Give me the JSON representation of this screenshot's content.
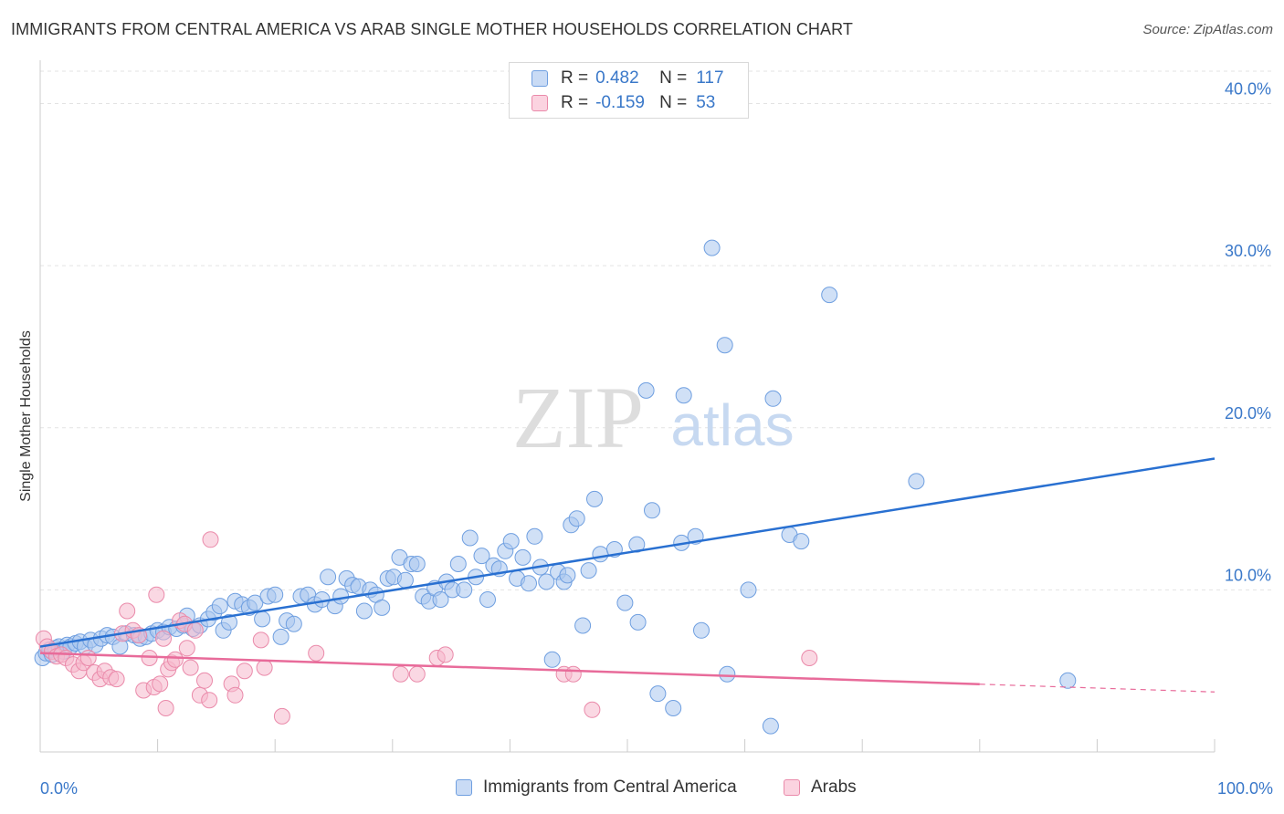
{
  "title": "IMMIGRANTS FROM CENTRAL AMERICA VS ARAB SINGLE MOTHER HOUSEHOLDS CORRELATION CHART",
  "source": "Source: ZipAtlas.com",
  "watermark": {
    "zip": "ZIP",
    "atlas": "atlas"
  },
  "colors": {
    "blue_fill": "#a9c6ee",
    "blue_stroke": "#6f9fe0",
    "blue_line": "#2970d1",
    "pink_fill": "#f5b8cc",
    "pink_stroke": "#ea8aaa",
    "pink_line": "#e86b9a",
    "tick_label": "#3a78c9",
    "grid": "#e3e3e3"
  },
  "legend": {
    "rows": [
      {
        "r_label": "R =",
        "r_value": "0.482",
        "n_label": "N =",
        "n_value": "117"
      },
      {
        "r_label": "R =",
        "r_value": "-0.159",
        "n_label": "N =",
        "n_value": "53"
      }
    ],
    "bottom": [
      "Immigrants from Central America",
      "Arabs"
    ]
  },
  "chart_data": {
    "type": "scatter",
    "title": "IMMIGRANTS FROM CENTRAL AMERICA VS ARAB SINGLE MOTHER HOUSEHOLDS CORRELATION CHART",
    "xlabel": "",
    "ylabel": "Single Mother Households",
    "xlim": [
      0,
      100
    ],
    "ylim": [
      0,
      42
    ],
    "x_tick_labels": [
      "0.0%",
      "100.0%"
    ],
    "y_ticks": [
      10,
      20,
      30,
      40
    ],
    "y_tick_labels": [
      "10.0%",
      "20.0%",
      "30.0%",
      "40.0%"
    ],
    "grid": true,
    "legend_position": "top-center",
    "series": [
      {
        "name": "Immigrants from Central America",
        "color": "#6f9fe0",
        "points": [
          [
            0.2,
            5.8
          ],
          [
            0.5,
            6.1
          ],
          [
            0.8,
            6.3
          ],
          [
            1.0,
            6.0
          ],
          [
            1.3,
            6.4
          ],
          [
            1.6,
            6.5
          ],
          [
            2.0,
            6.2
          ],
          [
            2.3,
            6.6
          ],
          [
            2.6,
            6.5
          ],
          [
            3.0,
            6.7
          ],
          [
            3.4,
            6.8
          ],
          [
            3.8,
            6.5
          ],
          [
            4.3,
            6.9
          ],
          [
            4.7,
            6.6
          ],
          [
            5.2,
            7.0
          ],
          [
            5.7,
            7.2
          ],
          [
            6.2,
            7.1
          ],
          [
            6.8,
            6.5
          ],
          [
            7.3,
            7.3
          ],
          [
            8.0,
            7.2
          ],
          [
            8.5,
            7.0
          ],
          [
            9.0,
            7.1
          ],
          [
            9.5,
            7.3
          ],
          [
            10.0,
            7.5
          ],
          [
            10.5,
            7.4
          ],
          [
            11.0,
            7.7
          ],
          [
            11.6,
            7.6
          ],
          [
            12.2,
            7.8
          ],
          [
            12.5,
            8.4
          ],
          [
            13.0,
            7.6
          ],
          [
            13.6,
            7.8
          ],
          [
            14.3,
            8.2
          ],
          [
            14.8,
            8.6
          ],
          [
            15.3,
            9.0
          ],
          [
            15.6,
            7.5
          ],
          [
            16.1,
            8.0
          ],
          [
            16.6,
            9.3
          ],
          [
            17.2,
            9.1
          ],
          [
            17.8,
            8.9
          ],
          [
            18.3,
            9.2
          ],
          [
            18.9,
            8.2
          ],
          [
            19.4,
            9.6
          ],
          [
            20.0,
            9.7
          ],
          [
            20.5,
            7.1
          ],
          [
            21.0,
            8.1
          ],
          [
            21.6,
            7.9
          ],
          [
            22.2,
            9.6
          ],
          [
            22.8,
            9.7
          ],
          [
            23.4,
            9.1
          ],
          [
            24.0,
            9.4
          ],
          [
            24.5,
            10.8
          ],
          [
            25.1,
            9.0
          ],
          [
            25.6,
            9.6
          ],
          [
            26.1,
            10.7
          ],
          [
            26.6,
            10.3
          ],
          [
            27.1,
            10.2
          ],
          [
            27.6,
            8.7
          ],
          [
            28.1,
            10.0
          ],
          [
            28.6,
            9.7
          ],
          [
            29.1,
            8.9
          ],
          [
            29.6,
            10.7
          ],
          [
            30.1,
            10.8
          ],
          [
            30.6,
            12.0
          ],
          [
            31.1,
            10.6
          ],
          [
            31.6,
            11.6
          ],
          [
            32.1,
            11.6
          ],
          [
            32.6,
            9.6
          ],
          [
            33.1,
            9.3
          ],
          [
            33.6,
            10.1
          ],
          [
            34.1,
            9.4
          ],
          [
            34.6,
            10.5
          ],
          [
            35.1,
            10.0
          ],
          [
            35.6,
            11.6
          ],
          [
            36.1,
            10.0
          ],
          [
            36.6,
            13.2
          ],
          [
            37.1,
            10.8
          ],
          [
            37.6,
            12.1
          ],
          [
            38.1,
            9.4
          ],
          [
            38.6,
            11.5
          ],
          [
            39.1,
            11.3
          ],
          [
            39.6,
            12.4
          ],
          [
            40.1,
            13.0
          ],
          [
            40.6,
            10.7
          ],
          [
            41.1,
            12.0
          ],
          [
            41.6,
            10.4
          ],
          [
            42.1,
            13.3
          ],
          [
            42.6,
            11.4
          ],
          [
            43.1,
            10.5
          ],
          [
            43.6,
            5.7
          ],
          [
            44.1,
            11.1
          ],
          [
            44.6,
            10.5
          ],
          [
            44.9,
            10.9
          ],
          [
            45.2,
            14.0
          ],
          [
            45.7,
            14.4
          ],
          [
            46.2,
            7.8
          ],
          [
            46.7,
            11.2
          ],
          [
            47.2,
            15.6
          ],
          [
            47.7,
            12.2
          ],
          [
            48.9,
            12.5
          ],
          [
            49.8,
            9.2
          ],
          [
            50.8,
            12.8
          ],
          [
            50.9,
            8.0
          ],
          [
            51.6,
            22.3
          ],
          [
            52.1,
            14.9
          ],
          [
            52.6,
            3.6
          ],
          [
            53.9,
            2.7
          ],
          [
            54.8,
            22.0
          ],
          [
            54.6,
            12.9
          ],
          [
            55.8,
            13.3
          ],
          [
            56.3,
            7.5
          ],
          [
            57.2,
            31.1
          ],
          [
            58.3,
            25.1
          ],
          [
            58.5,
            4.8
          ],
          [
            60.3,
            10.0
          ],
          [
            62.2,
            1.6
          ],
          [
            62.4,
            21.8
          ],
          [
            63.8,
            13.4
          ],
          [
            64.8,
            13.0
          ],
          [
            67.2,
            28.2
          ],
          [
            74.6,
            16.7
          ],
          [
            87.5,
            4.4
          ]
        ]
      },
      {
        "name": "Arabs",
        "color": "#ea8aaa",
        "points": [
          [
            0.3,
            7.0
          ],
          [
            0.6,
            6.5
          ],
          [
            1.0,
            6.2
          ],
          [
            1.4,
            5.9
          ],
          [
            1.8,
            6.0
          ],
          [
            2.2,
            5.8
          ],
          [
            2.8,
            5.4
          ],
          [
            3.3,
            5.0
          ],
          [
            3.7,
            5.5
          ],
          [
            4.1,
            5.8
          ],
          [
            4.6,
            4.9
          ],
          [
            5.1,
            4.5
          ],
          [
            5.5,
            5.0
          ],
          [
            6.0,
            4.6
          ],
          [
            6.5,
            4.5
          ],
          [
            7.0,
            7.3
          ],
          [
            7.4,
            8.7
          ],
          [
            7.9,
            7.5
          ],
          [
            8.4,
            7.2
          ],
          [
            8.8,
            3.8
          ],
          [
            9.3,
            5.8
          ],
          [
            9.7,
            4.0
          ],
          [
            9.9,
            9.7
          ],
          [
            10.2,
            4.2
          ],
          [
            10.5,
            7.0
          ],
          [
            10.7,
            2.7
          ],
          [
            10.9,
            5.1
          ],
          [
            11.2,
            5.5
          ],
          [
            11.5,
            5.7
          ],
          [
            11.9,
            8.1
          ],
          [
            12.3,
            7.9
          ],
          [
            12.5,
            6.4
          ],
          [
            12.8,
            5.2
          ],
          [
            13.2,
            7.5
          ],
          [
            13.6,
            3.5
          ],
          [
            14.0,
            4.4
          ],
          [
            14.4,
            3.2
          ],
          [
            14.5,
            13.1
          ],
          [
            16.3,
            4.2
          ],
          [
            16.6,
            3.5
          ],
          [
            17.4,
            5.0
          ],
          [
            18.8,
            6.9
          ],
          [
            19.1,
            5.2
          ],
          [
            20.6,
            2.2
          ],
          [
            23.5,
            6.1
          ],
          [
            30.7,
            4.8
          ],
          [
            32.1,
            4.8
          ],
          [
            33.8,
            5.8
          ],
          [
            34.5,
            6.0
          ],
          [
            44.6,
            4.8
          ],
          [
            45.4,
            4.8
          ],
          [
            47.0,
            2.6
          ],
          [
            65.5,
            5.8
          ]
        ]
      }
    ],
    "trend_lines": [
      {
        "series": "Immigrants from Central America",
        "x": [
          0,
          100
        ],
        "y": [
          6.5,
          18.1
        ],
        "dashed_from": null
      },
      {
        "series": "Arabs",
        "x": [
          0,
          100
        ],
        "y": [
          6.1,
          3.7
        ],
        "dashed_from": 80
      }
    ]
  }
}
